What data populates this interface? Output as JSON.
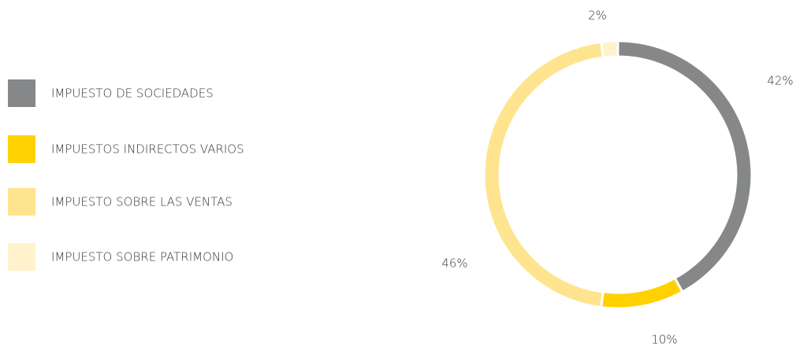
{
  "chart_data": {
    "type": "donut",
    "categories": [
      "IMPUESTO DE SOCIEDADES",
      "IMPUESTOS INDIRECTOS VARIOS",
      "IMPUESTO SOBRE LAS VENTAS",
      "IMPUESTO SOBRE PATRIMONIO"
    ],
    "values": [
      42,
      10,
      46,
      2
    ],
    "value_labels": [
      "42%",
      "10%",
      "46%",
      "2%"
    ],
    "colors": [
      "#868789",
      "#ffd100",
      "#ffe48f",
      "#fff2cc"
    ],
    "legend": "left"
  }
}
